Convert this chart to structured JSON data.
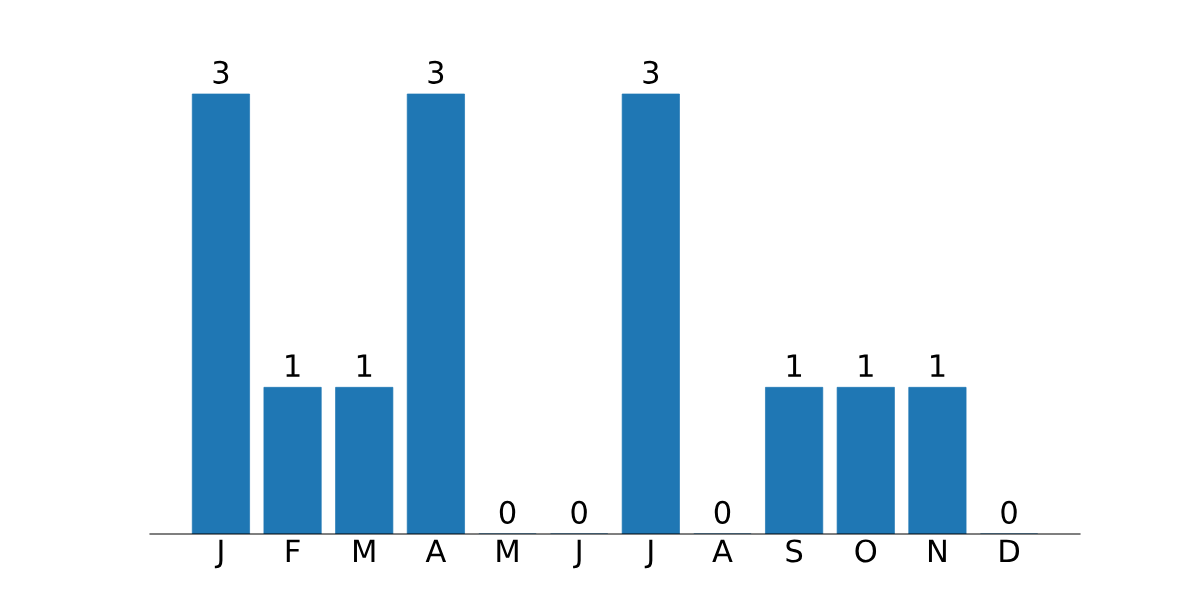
{
  "chart_data": {
    "type": "bar",
    "categories": [
      "J",
      "F",
      "M",
      "A",
      "M",
      "J",
      "J",
      "A",
      "S",
      "O",
      "N",
      "D"
    ],
    "values": [
      3,
      1,
      1,
      3,
      0,
      0,
      3,
      0,
      1,
      1,
      1,
      0
    ],
    "color": "#1f77b4",
    "data_labels": true,
    "tick_labels": "x",
    "grid": false,
    "legend": false
  }
}
